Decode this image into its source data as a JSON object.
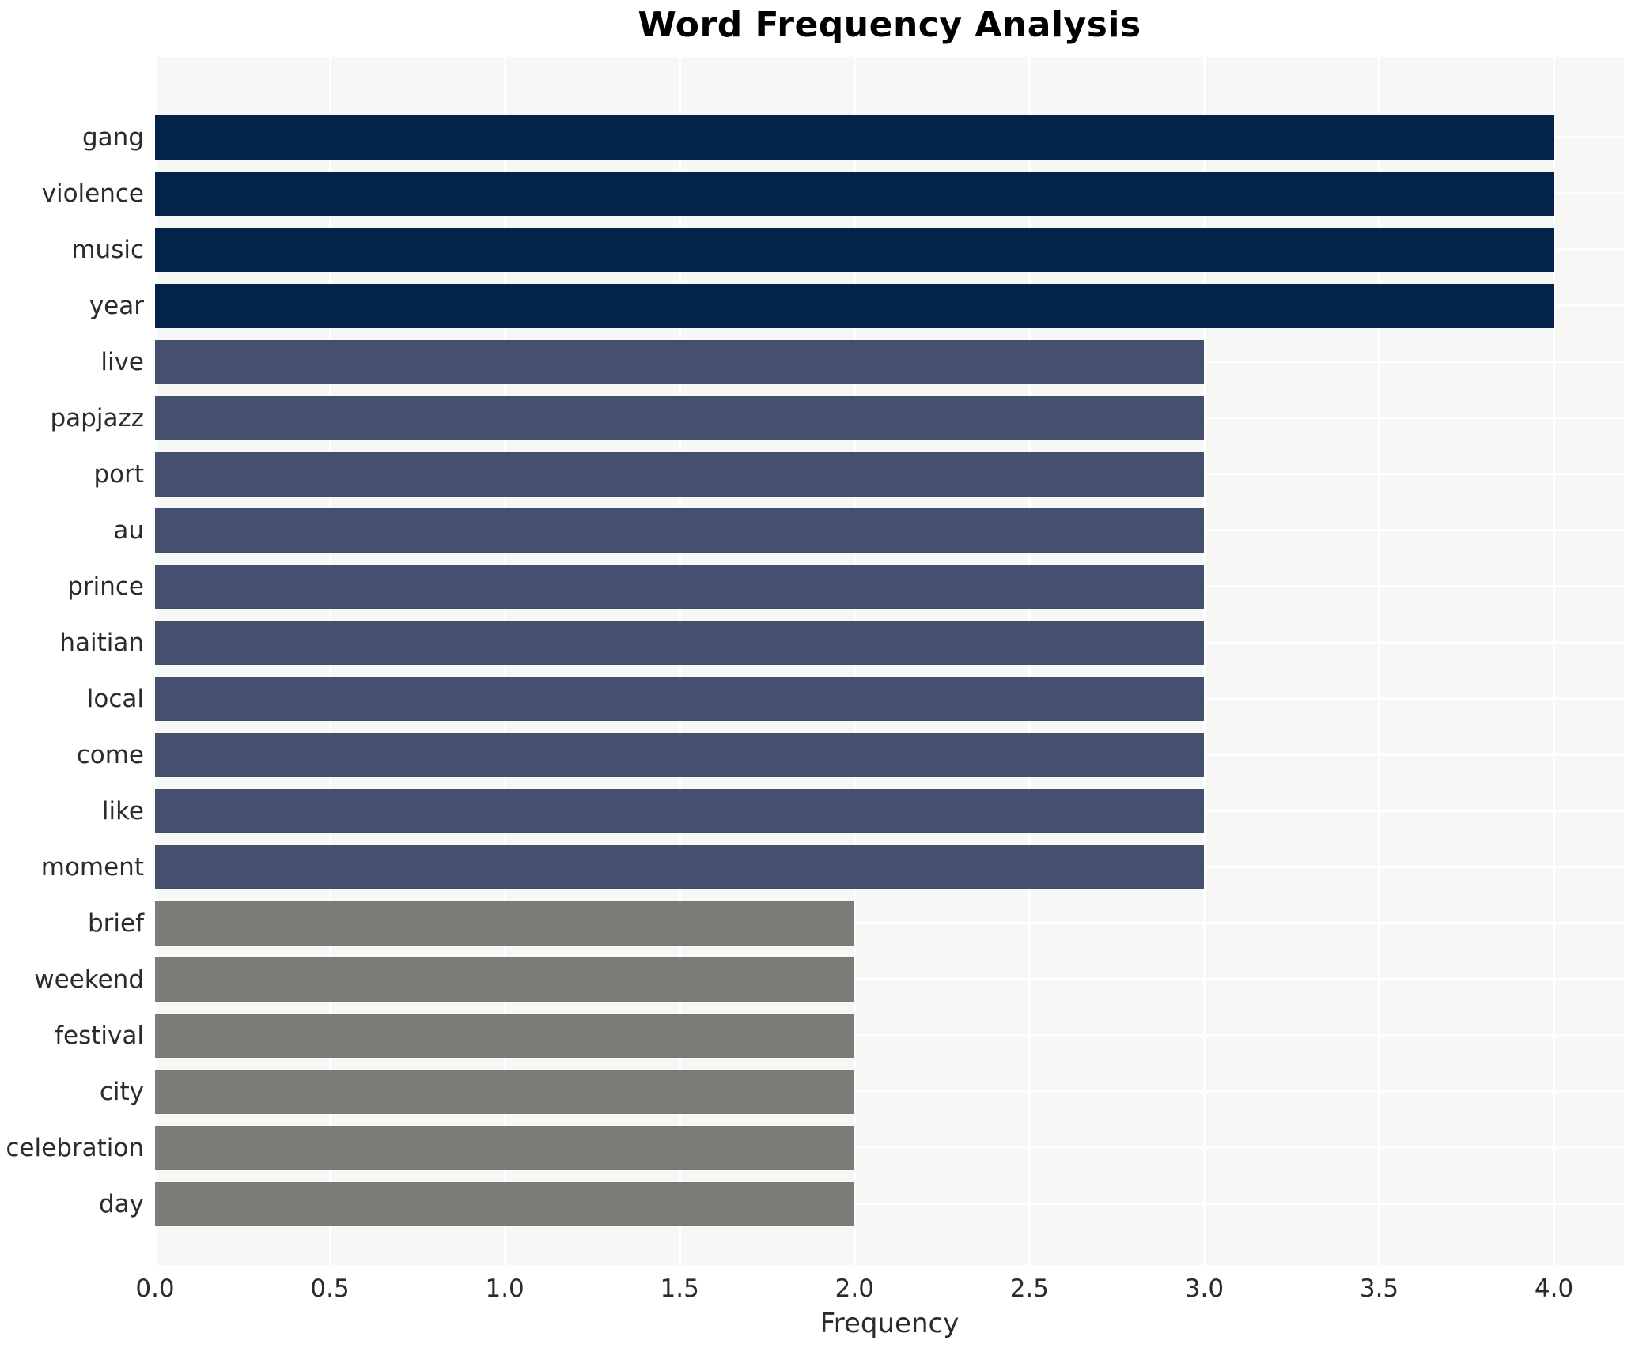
{
  "title": "Word Frequency Analysis",
  "xlabel": "Frequency",
  "chart_data": {
    "type": "bar",
    "orientation": "horizontal",
    "title": "Word Frequency Analysis",
    "xlabel": "Frequency",
    "ylabel": "",
    "categories": [
      "gang",
      "violence",
      "music",
      "year",
      "live",
      "papjazz",
      "port",
      "au",
      "prince",
      "haitian",
      "local",
      "come",
      "like",
      "moment",
      "brief",
      "weekend",
      "festival",
      "city",
      "celebration",
      "day"
    ],
    "values": [
      4,
      4,
      4,
      4,
      3,
      3,
      3,
      3,
      3,
      3,
      3,
      3,
      3,
      3,
      2,
      2,
      2,
      2,
      2,
      2
    ],
    "xlim": [
      0,
      4.2
    ],
    "xticks": [
      0.0,
      0.5,
      1.0,
      1.5,
      2.0,
      2.5,
      3.0,
      3.5,
      4.0
    ],
    "grid": true,
    "legend": "none",
    "colors_by_value": {
      "4": "#03234b",
      "3": "#454f6e",
      "2": "#7c7b77"
    },
    "plot_background": "#f7f7f5",
    "grid_color": "#ffffff",
    "text_color": "#2b2b2b"
  }
}
